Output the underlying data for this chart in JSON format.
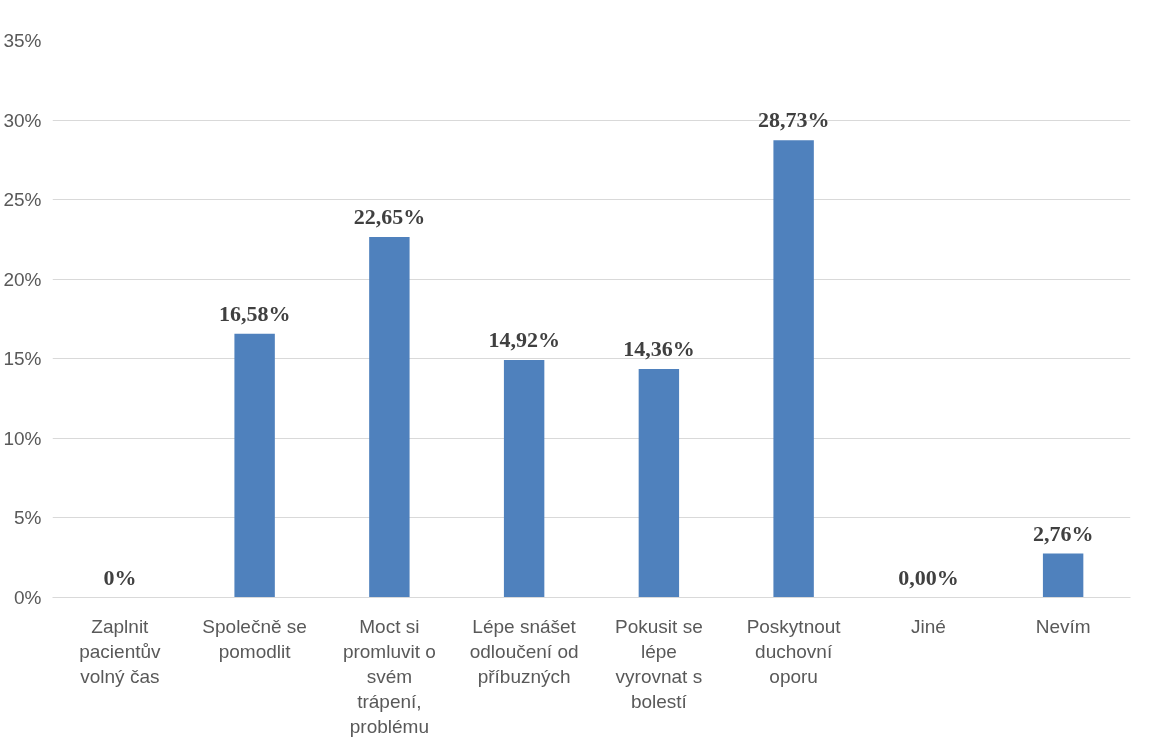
{
  "chart_data": {
    "type": "bar",
    "categories": [
      "Zaplnit pacientův volný čas",
      "Společně se pomodlit",
      "Moct si promluvit o svém trápení, problému",
      "Lépe snášet odloučení od příbuzných",
      "Pokusit se lépe vyrovnat s bolestí",
      "Poskytnout duchovní oporu",
      "Jiné",
      "Nevím"
    ],
    "values": [
      0,
      16.58,
      22.65,
      14.92,
      14.36,
      28.73,
      0,
      2.76
    ],
    "value_labels": [
      "0%",
      "16,58%",
      "22,65%",
      "14,92%",
      "14,36%",
      "28,73%",
      "0,00%",
      "2,76%"
    ],
    "color": "#4f81bd",
    "ylim": [
      0,
      35
    ],
    "yticks": [
      {
        "value": 0,
        "label": "0%"
      },
      {
        "value": 5,
        "label": "5%"
      },
      {
        "value": 10,
        "label": "10%"
      },
      {
        "value": 15,
        "label": "15%"
      },
      {
        "value": 20,
        "label": "20%"
      },
      {
        "value": 25,
        "label": "25%"
      },
      {
        "value": 30,
        "label": "30%"
      },
      {
        "value": 35,
        "label": "35%"
      }
    ],
    "grid": "y"
  }
}
